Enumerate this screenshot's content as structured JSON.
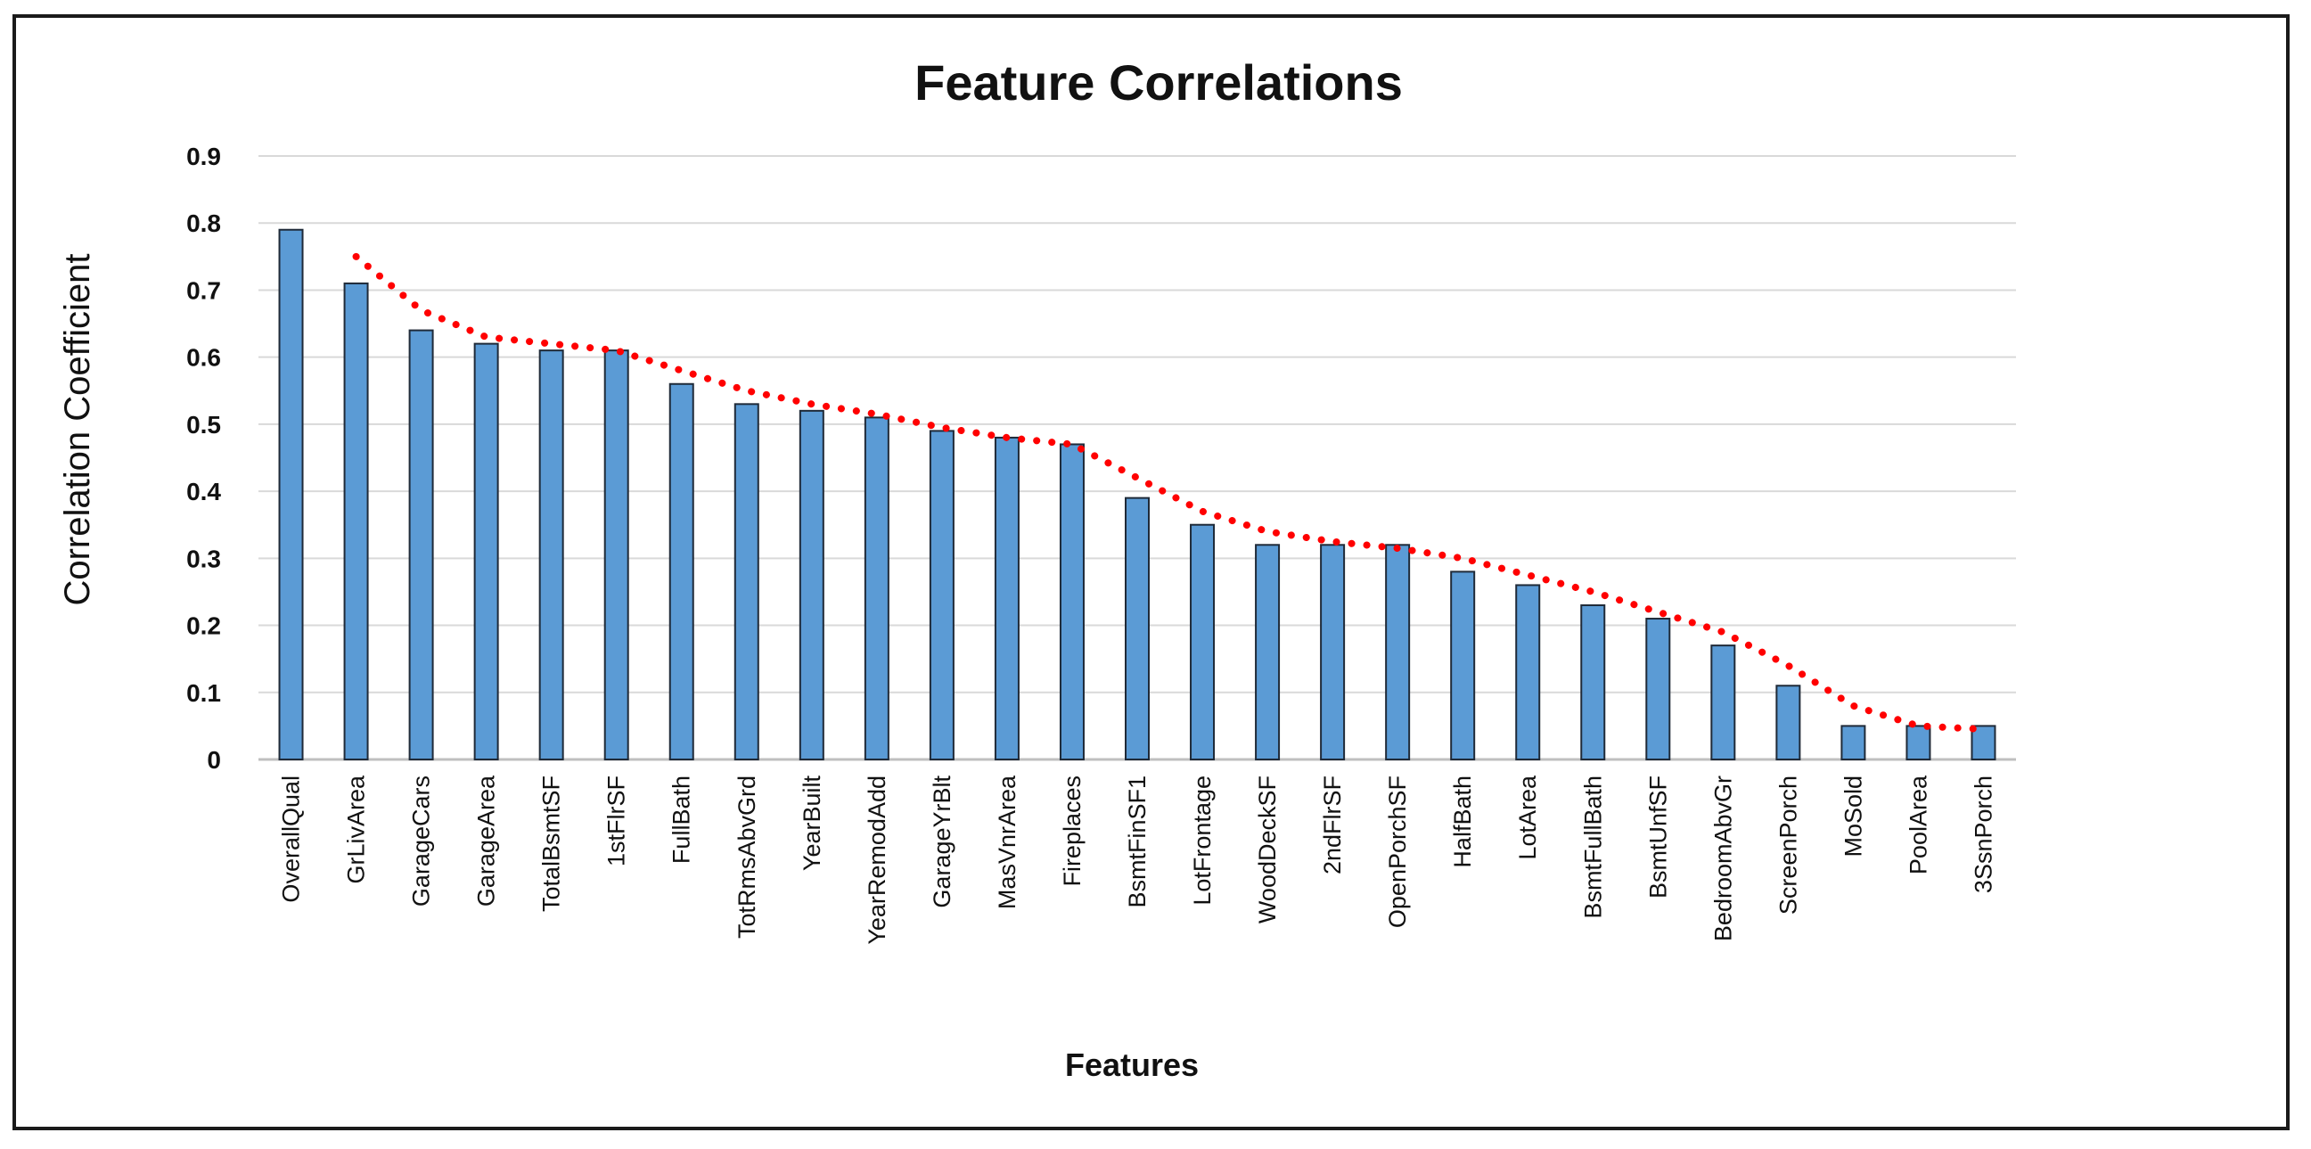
{
  "chart_data": {
    "type": "bar",
    "title": "Feature Correlations",
    "xlabel": "Features",
    "ylabel": "Correlation Coefficient",
    "ylim": [
      0,
      0.9
    ],
    "yticks": [
      "0",
      "0.1",
      "0.2",
      "0.3",
      "0.4",
      "0.5",
      "0.6",
      "0.7",
      "0.8",
      "0.9"
    ],
    "grid": true,
    "legend": "none",
    "bar_color": "#5b9bd5",
    "trend_color": "#ff0000",
    "categories": [
      "OverallQual",
      "GrLivArea",
      "GarageCars",
      "GarageArea",
      "TotalBsmtSF",
      "1stFlrSF",
      "FullBath",
      "TotRmsAbvGrd",
      "YearBuilt",
      "YearRemodAdd",
      "GarageYrBlt",
      "MasVnrArea",
      "Fireplaces",
      "BsmtFinSF1",
      "LotFrontage",
      "WoodDeckSF",
      "2ndFlrSF",
      "OpenPorchSF",
      "HalfBath",
      "LotArea",
      "BsmtFullBath",
      "BsmtUnfSF",
      "BedroomAbvGr",
      "ScreenPorch",
      "MoSold",
      "PoolArea",
      "3SsnPorch"
    ],
    "values": [
      0.79,
      0.71,
      0.64,
      0.62,
      0.61,
      0.61,
      0.56,
      0.53,
      0.52,
      0.51,
      0.49,
      0.48,
      0.47,
      0.39,
      0.35,
      0.32,
      0.32,
      0.32,
      0.28,
      0.26,
      0.23,
      0.21,
      0.17,
      0.11,
      0.05,
      0.05,
      0.05
    ],
    "trendline": {
      "style": "dotted",
      "x_categories": [
        "GrLivArea",
        "GarageCars",
        "GarageArea",
        "TotalBsmtSF",
        "1stFlrSF",
        "FullBath",
        "TotRmsAbvGrd",
        "YearBuilt",
        "YearRemodAdd",
        "GarageYrBlt",
        "MasVnrArea",
        "Fireplaces",
        "BsmtFinSF1",
        "LotFrontage",
        "WoodDeckSF",
        "2ndFlrSF",
        "OpenPorchSF",
        "HalfBath",
        "LotArea",
        "BsmtFullBath",
        "BsmtUnfSF",
        "BedroomAbvGr",
        "ScreenPorch",
        "MoSold",
        "PoolArea",
        "3SsnPorch"
      ],
      "values": [
        0.75,
        0.67,
        0.63,
        0.62,
        0.61,
        0.58,
        0.55,
        0.53,
        0.515,
        0.495,
        0.48,
        0.47,
        0.42,
        0.37,
        0.34,
        0.325,
        0.315,
        0.3,
        0.275,
        0.25,
        0.22,
        0.19,
        0.14,
        0.08,
        0.05,
        0.045
      ]
    }
  }
}
